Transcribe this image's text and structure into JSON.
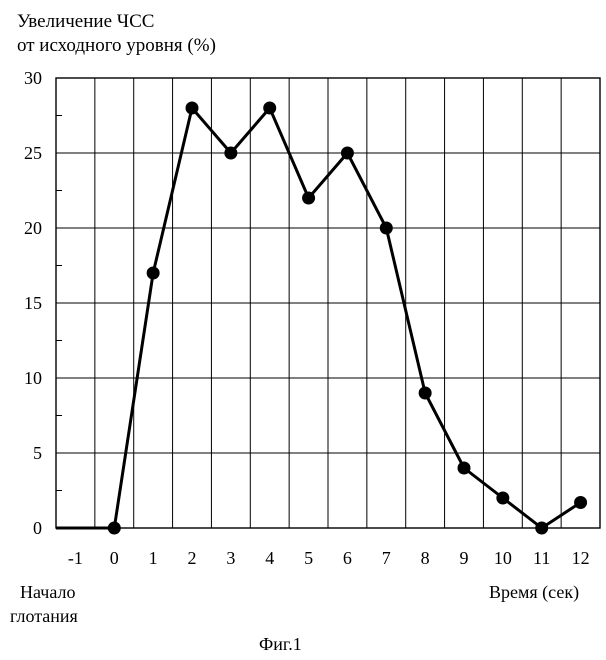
{
  "chart_data": {
    "type": "line",
    "ylabel_line1": "Увеличение ЧСС",
    "ylabel_line2": "от исходного уровня (%)",
    "xlabel": "Время (сек)",
    "start_label_line1": "Начало",
    "start_label_line2": "глотания",
    "caption": "Фиг.1",
    "xlim": [
      -1.5,
      12.5
    ],
    "ylim": [
      0,
      30
    ],
    "x_ticks": [
      -1,
      0,
      1,
      2,
      3,
      4,
      5,
      6,
      7,
      8,
      9,
      10,
      11,
      12
    ],
    "y_ticks": [
      0,
      5,
      10,
      15,
      20,
      25,
      30
    ],
    "grid": true,
    "line_color": "#000000",
    "series": [
      {
        "x": [
          -1.5,
          0,
          1,
          2,
          3,
          4,
          5,
          6,
          7,
          8,
          9,
          10,
          11,
          12
        ],
        "y": [
          0,
          0,
          17,
          28,
          25,
          28,
          22,
          25,
          20,
          9,
          4,
          2,
          0,
          1.7
        ],
        "markers": [
          false,
          true,
          true,
          true,
          true,
          true,
          true,
          true,
          true,
          true,
          true,
          true,
          true,
          true
        ]
      }
    ]
  }
}
